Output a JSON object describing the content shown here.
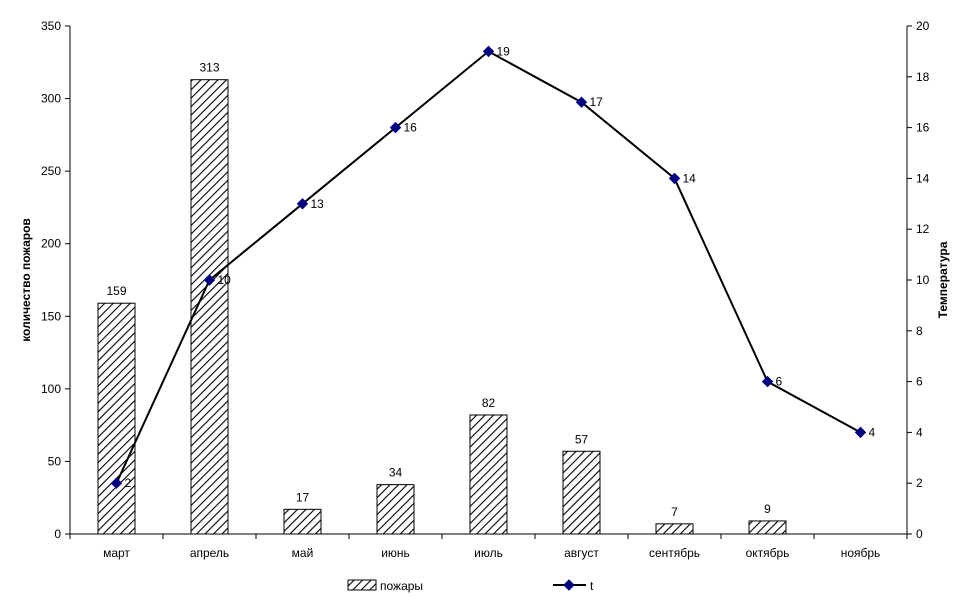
{
  "chart_data": {
    "type": "bar+line",
    "categories": [
      "март",
      "апрель",
      "май",
      "июнь",
      "июль",
      "август",
      "сентябрь",
      "октябрь",
      "ноябрь"
    ],
    "series": [
      {
        "name": "пожары",
        "type": "bar",
        "axis": "left",
        "values": [
          159,
          313,
          17,
          34,
          82,
          57,
          7,
          9,
          null
        ],
        "data_labels": [
          "159",
          "313",
          "17",
          "34",
          "82",
          "57",
          "7",
          "9",
          ""
        ]
      },
      {
        "name": "t",
        "type": "line",
        "axis": "right",
        "values": [
          2,
          10,
          13,
          16,
          19,
          17,
          14,
          6,
          4
        ],
        "data_labels": [
          "2",
          "10",
          "13",
          "16",
          "19",
          "17",
          "14",
          "6",
          "4"
        ],
        "color": "#000080"
      }
    ],
    "ylabel_left": "количество пожаров",
    "ylabel_right": "Температура",
    "ylim_left": [
      0,
      350
    ],
    "ylim_right": [
      0,
      20
    ],
    "yticks_left": [
      "0",
      "50",
      "100",
      "150",
      "200",
      "250",
      "300",
      "350"
    ],
    "yticks_right": [
      "0",
      "2",
      "4",
      "6",
      "8",
      "10",
      "12",
      "14",
      "16",
      "18",
      "20"
    ],
    "grid": false,
    "legend_position": "bottom",
    "legend": [
      "пожары",
      "t"
    ]
  }
}
